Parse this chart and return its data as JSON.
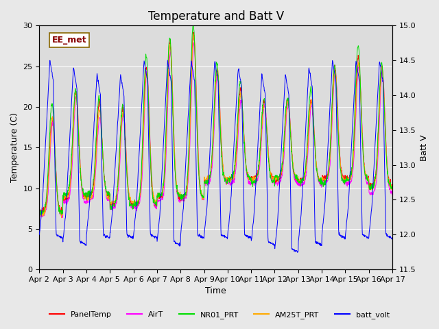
{
  "title": "Temperature and Batt V",
  "xlabel": "Time",
  "ylabel_left": "Temperature (C)",
  "ylabel_right": "Batt V",
  "annotation": "EE_met",
  "ylim_left": [
    0,
    30
  ],
  "ylim_right": [
    11.5,
    15.0
  ],
  "x_tick_labels": [
    "Apr 2",
    "Apr 3",
    "Apr 4",
    "Apr 5",
    "Apr 6",
    "Apr 7",
    "Apr 8",
    "Apr 9",
    "Apr 10",
    "Apr 11",
    "Apr 12",
    "Apr 13",
    "Apr 14",
    "Apr 15",
    "Apr 16",
    "Apr 17"
  ],
  "legend_entries": [
    {
      "label": "PanelTemp",
      "color": "#ff0000"
    },
    {
      "label": "AirT",
      "color": "#ff00ff"
    },
    {
      "label": "NR01_PRT",
      "color": "#00dd00"
    },
    {
      "label": "AM25T_PRT",
      "color": "#ffaa00"
    },
    {
      "label": "batt_volt",
      "color": "#0000ff"
    }
  ],
  "background_color": "#e8e8e8",
  "plot_bg_color": "#dcdcdc",
  "grid_color": "#ffffff",
  "title_fontsize": 12,
  "axis_fontsize": 9,
  "tick_fontsize": 8,
  "day_peaks": [
    19,
    22,
    20,
    20,
    25,
    28,
    29,
    25,
    22,
    21,
    21,
    21,
    25,
    26,
    25
  ],
  "day_mins": [
    7,
    9,
    9,
    8,
    8,
    9,
    9,
    11,
    11,
    11,
    11,
    11,
    11,
    11,
    10
  ],
  "batt_day_peaks": [
    14.5,
    14.4,
    14.3,
    14.3,
    14.5,
    14.5,
    14.5,
    14.5,
    14.4,
    14.3,
    14.3,
    14.4,
    14.5,
    14.5,
    14.5
  ],
  "batt_night_mins": [
    12.0,
    11.9,
    12.0,
    12.0,
    12.0,
    11.9,
    12.0,
    12.0,
    12.0,
    11.9,
    11.8,
    11.9,
    12.0,
    12.0,
    12.0
  ]
}
